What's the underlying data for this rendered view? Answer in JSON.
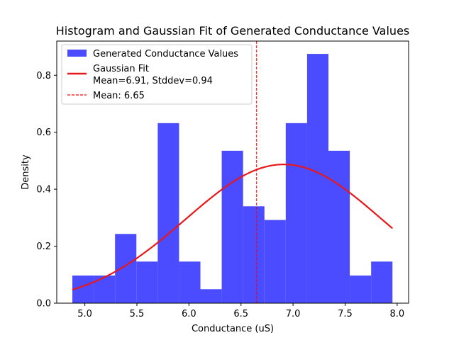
{
  "chart_data": {
    "type": "bar",
    "title": "Histogram and Gaussian Fit of Generated Conductance Values",
    "xlabel": "Conductance (uS)",
    "ylabel": "Density",
    "xlim": [
      4.73,
      8.11
    ],
    "ylim": [
      0,
      0.92
    ],
    "xticks": [
      5.0,
      5.5,
      6.0,
      6.5,
      7.0,
      7.5,
      8.0
    ],
    "xtick_labels": [
      "5.0",
      "5.5",
      "6.0",
      "6.5",
      "7.0",
      "7.5",
      "8.0"
    ],
    "yticks": [
      0.0,
      0.2,
      0.4,
      0.6,
      0.8
    ],
    "ytick_labels": [
      "0.0",
      "0.2",
      "0.4",
      "0.6",
      "0.8"
    ],
    "grid": false,
    "legend_placement": "top-left",
    "colors": {
      "histogram": "#4b4bff",
      "gaussian": "#e8171a",
      "mean_line": "#ff0000"
    },
    "histogram": {
      "name": "Generated Conductance Values",
      "bin_edges": [
        4.88,
        5.085,
        5.29,
        5.495,
        5.7,
        5.905,
        6.11,
        6.315,
        6.52,
        6.725,
        6.93,
        7.135,
        7.34,
        7.545,
        7.75,
        7.955
      ],
      "densities": [
        0.097,
        0.097,
        0.243,
        0.146,
        0.632,
        0.146,
        0.049,
        0.535,
        0.34,
        0.292,
        0.632,
        0.875,
        0.535,
        0.097,
        0.146
      ]
    },
    "gaussian": {
      "name_line1": "Gaussian Fit",
      "name_line2": "Mean=6.91, Stddev=0.94",
      "mean": 6.91,
      "stddev": 0.94,
      "amplitude": 0.487,
      "x_range": [
        4.88,
        7.955
      ]
    },
    "mean_line": {
      "name": "Mean: 6.65",
      "x": 6.65
    }
  }
}
